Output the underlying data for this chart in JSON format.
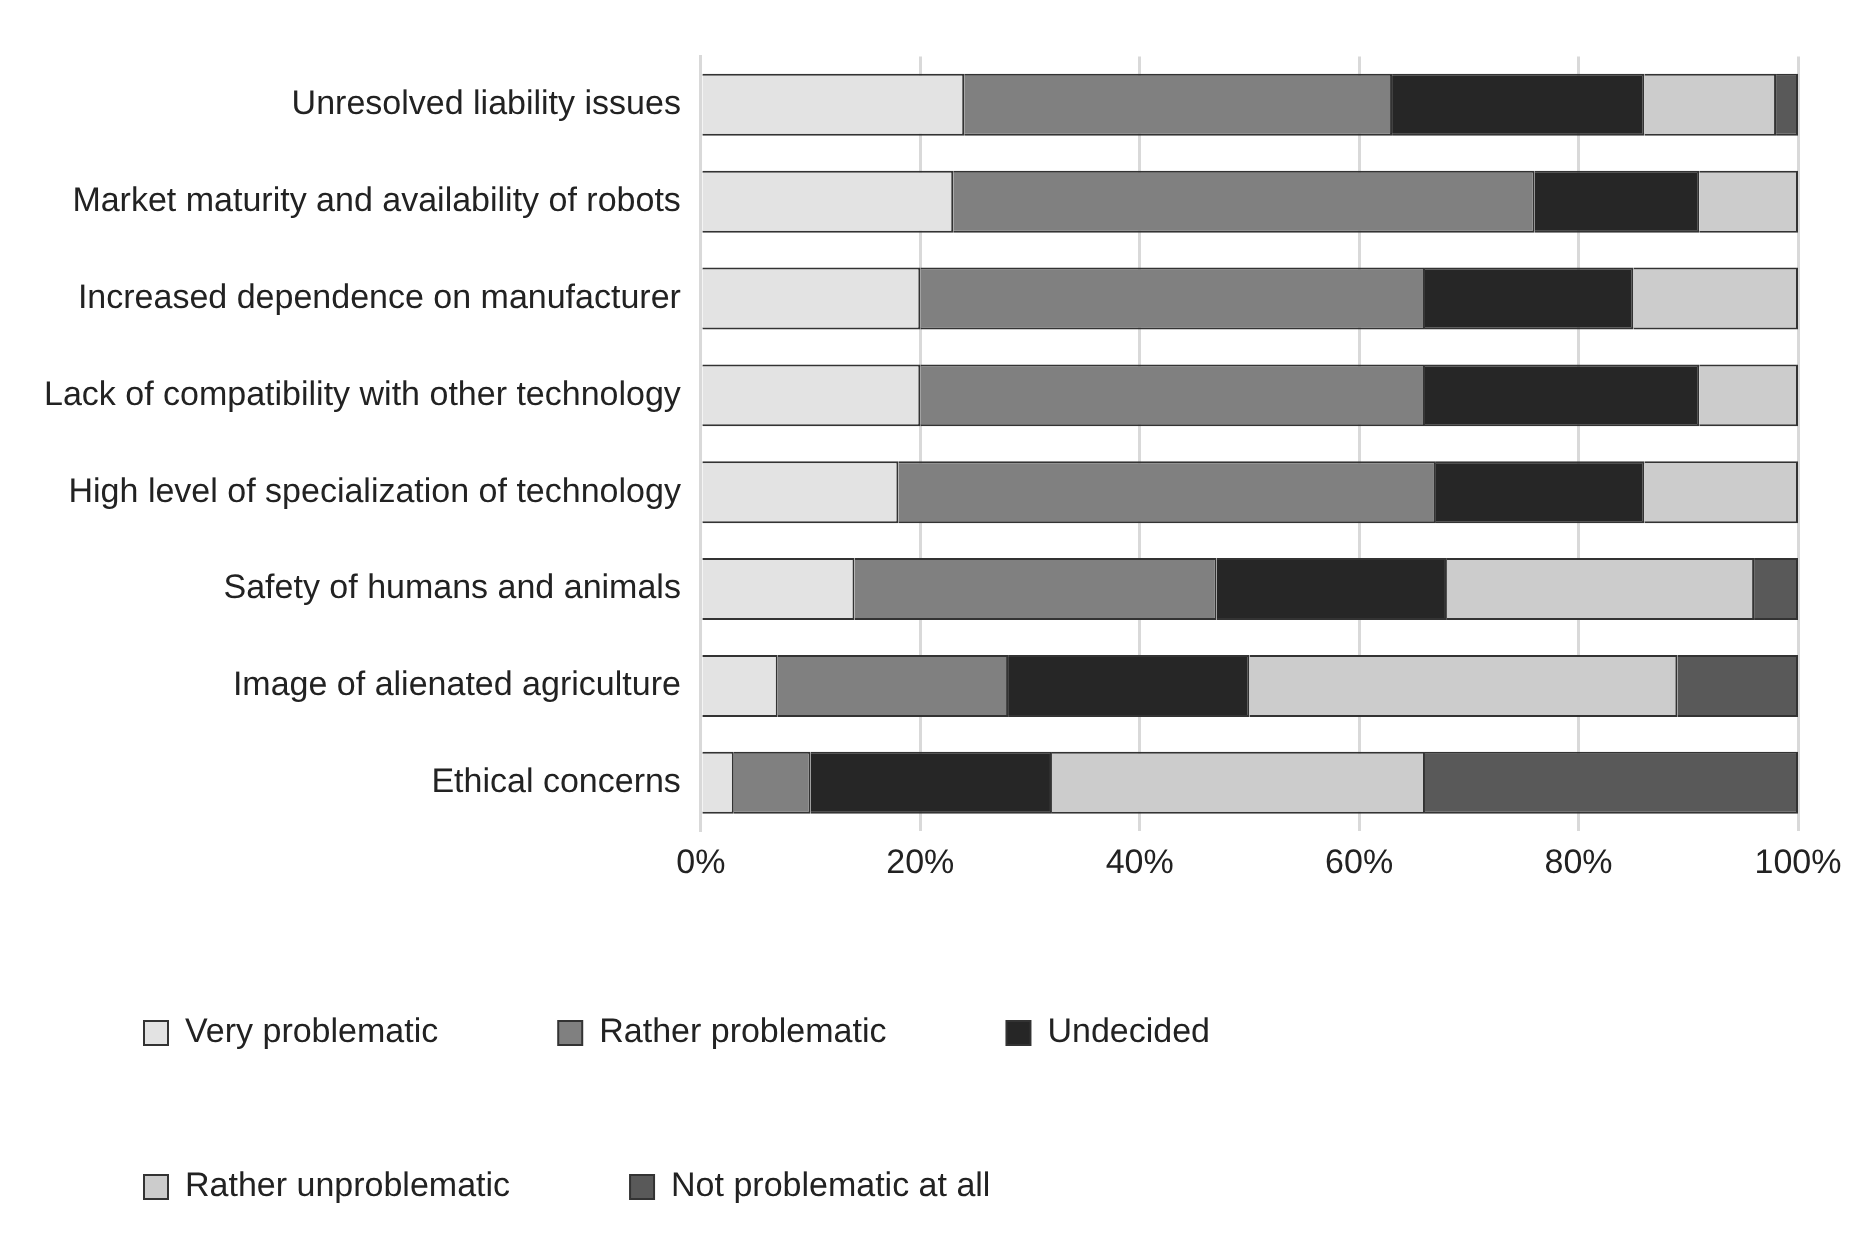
{
  "chart_data": {
    "type": "bar",
    "orientation": "horizontal",
    "stacked": true,
    "grid": "x",
    "legend": "bottom",
    "categories": [
      "Unresolved liability issues",
      "Market maturity and availability of robots",
      "Increased dependence on manufacturer",
      "Lack of compatibility with other technology",
      "High level of specialization of technology",
      "Safety of humans and animals",
      "Image of alienated agriculture",
      "Ethical concerns"
    ],
    "series": [
      {
        "name": "Very problematic",
        "color": "#e3e3e3",
        "values": [
          24,
          23,
          20,
          20,
          18,
          14,
          7,
          3
        ]
      },
      {
        "name": "Rather problematic",
        "color": "#808080",
        "values": [
          39,
          53,
          46,
          46,
          49,
          33,
          21,
          7
        ]
      },
      {
        "name": "Undecided",
        "color": "#262626",
        "values": [
          23,
          15,
          19,
          25,
          19,
          21,
          22,
          22
        ]
      },
      {
        "name": "Rather unproblematic",
        "color": "#cccccc",
        "values": [
          12,
          9,
          15,
          9,
          14,
          28,
          39,
          34
        ]
      },
      {
        "name": "Not problematic at all",
        "color": "#595959",
        "values": [
          2,
          0,
          0,
          0,
          0,
          4,
          11,
          34
        ]
      }
    ],
    "xlim": [
      0,
      100
    ],
    "xticks": [
      {
        "value": 0,
        "label": "0%"
      },
      {
        "value": 20,
        "label": "20%"
      },
      {
        "value": 40,
        "label": "40%"
      },
      {
        "value": 60,
        "label": "60%"
      },
      {
        "value": 80,
        "label": "80%"
      },
      {
        "value": 100,
        "label": "100%"
      }
    ]
  }
}
